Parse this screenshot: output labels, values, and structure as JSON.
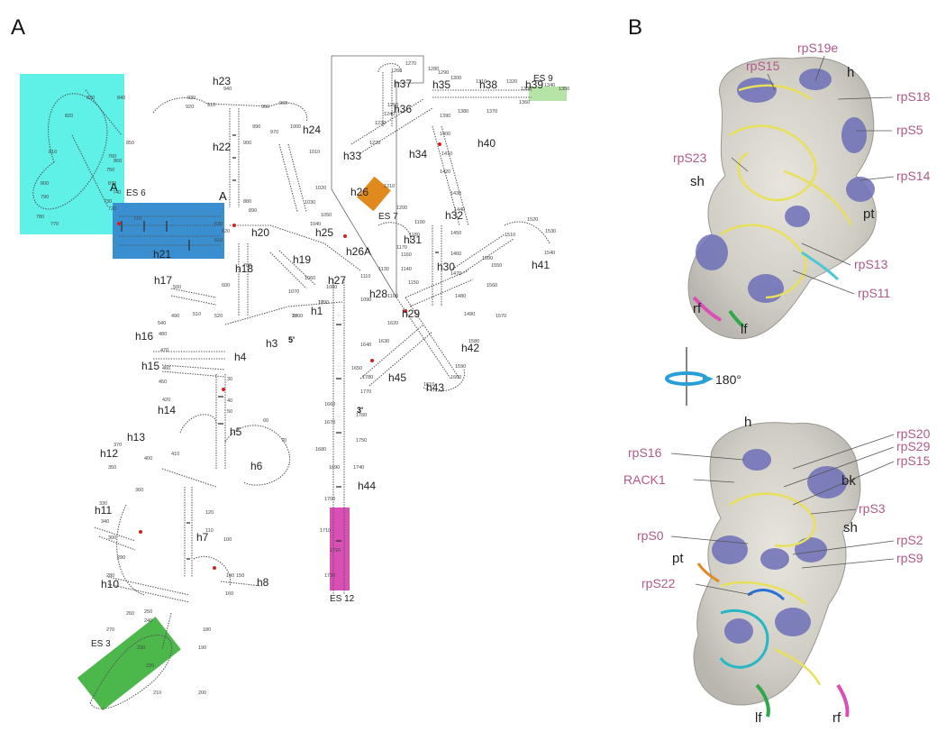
{
  "panels": {
    "a": "A",
    "b": "B"
  },
  "helices": [
    "h1",
    "h3",
    "h4",
    "h5",
    "h6",
    "h7",
    "h8",
    "h10",
    "h11",
    "h12",
    "h13",
    "h14",
    "h15",
    "h16",
    "h17",
    "h18",
    "h19",
    "h20",
    "h21",
    "h22",
    "h23",
    "h24",
    "h25",
    "h26",
    "h26A",
    "h27",
    "h28",
    "h29",
    "h30",
    "h31",
    "h32",
    "h33",
    "h34",
    "h35",
    "h36",
    "h37",
    "h38",
    "h39",
    "h40",
    "h41",
    "h42",
    "h43",
    "h44",
    "h45"
  ],
  "expansion_segments": {
    "es3": "ES 3",
    "es6": "ES 6",
    "es7": "ES 7",
    "es9": "ES 9",
    "es12": "ES 12"
  },
  "inset_markers": {
    "a1": "A",
    "a2": "A"
  },
  "termini": {
    "five": "5'",
    "three": "3'"
  },
  "nucleotide_numbers": [
    "10",
    "20",
    "30",
    "40",
    "50",
    "60",
    "70",
    "100",
    "110",
    "120",
    "140",
    "150",
    "160",
    "180",
    "190",
    "200",
    "210",
    "220",
    "230",
    "240",
    "250",
    "260",
    "270",
    "280",
    "290",
    "300",
    "330",
    "340",
    "350",
    "360",
    "370",
    "400",
    "410",
    "420",
    "450",
    "460",
    "470",
    "480",
    "490",
    "500",
    "510",
    "520",
    "540",
    "600",
    "610",
    "620",
    "630",
    "700",
    "710",
    "720",
    "730",
    "740",
    "750",
    "760",
    "770",
    "780",
    "790",
    "800",
    "810",
    "820",
    "830",
    "840",
    "850",
    "860",
    "870",
    "880",
    "890",
    "900",
    "910",
    "920",
    "930",
    "940",
    "950",
    "960",
    "970",
    "990",
    "1000",
    "1010",
    "1020",
    "1030",
    "1040",
    "1050",
    "1060",
    "1070",
    "1080",
    "1090",
    "1100",
    "1110",
    "1130",
    "1140",
    "1150",
    "1160",
    "1170",
    "1180",
    "1190",
    "1200",
    "1210",
    "1220",
    "1230",
    "1240",
    "1250",
    "1260",
    "1270",
    "1280",
    "1290",
    "1300",
    "1310",
    "1320",
    "1330",
    "1340",
    "1350",
    "1360",
    "1370",
    "1380",
    "1390",
    "1400",
    "1410",
    "1420",
    "1430",
    "1440",
    "1450",
    "1460",
    "1470",
    "1480",
    "1490",
    "1500",
    "1510",
    "1520",
    "1530",
    "1540",
    "1550",
    "1560",
    "1570",
    "1580",
    "1590",
    "1600",
    "1610",
    "1620",
    "1630",
    "1640",
    "1650",
    "1660",
    "1670",
    "1680",
    "1690",
    "1700",
    "1710",
    "1720",
    "1730",
    "1740",
    "1750",
    "1760",
    "1770",
    "1780",
    "1790",
    "1800"
  ],
  "top_view": {
    "proteins": [
      "rpS15",
      "rpS19e",
      "rpS18",
      "rpS5",
      "rpS23",
      "rpS14",
      "rpS13",
      "rpS11"
    ],
    "domains": [
      "h",
      "sh",
      "pt",
      "rf",
      "lf"
    ]
  },
  "rotation": "180°",
  "bottom_view": {
    "proteins": [
      "rpS20",
      "rpS29",
      "rpS15",
      "rpS16",
      "RACK1",
      "rpS3",
      "rpS0",
      "rpS2",
      "rpS9",
      "rpS22"
    ],
    "domains": [
      "h",
      "bk",
      "sh",
      "pt",
      "lf",
      "rf"
    ]
  },
  "colors": {
    "es3": "#4cb84c",
    "es6": "#3a8fd0",
    "es6_inset": "#5ff0e8",
    "es7": "#e08a1e",
    "es9": "#b6e3a6",
    "es12": "#d94fb5",
    "modified_nt": "#d02020",
    "protein_surface": "#6d6fb8",
    "rna_backbone": "#e8e05a",
    "protein_label": "#b05a8a",
    "rotation_arrow": "#2a9fd6"
  }
}
